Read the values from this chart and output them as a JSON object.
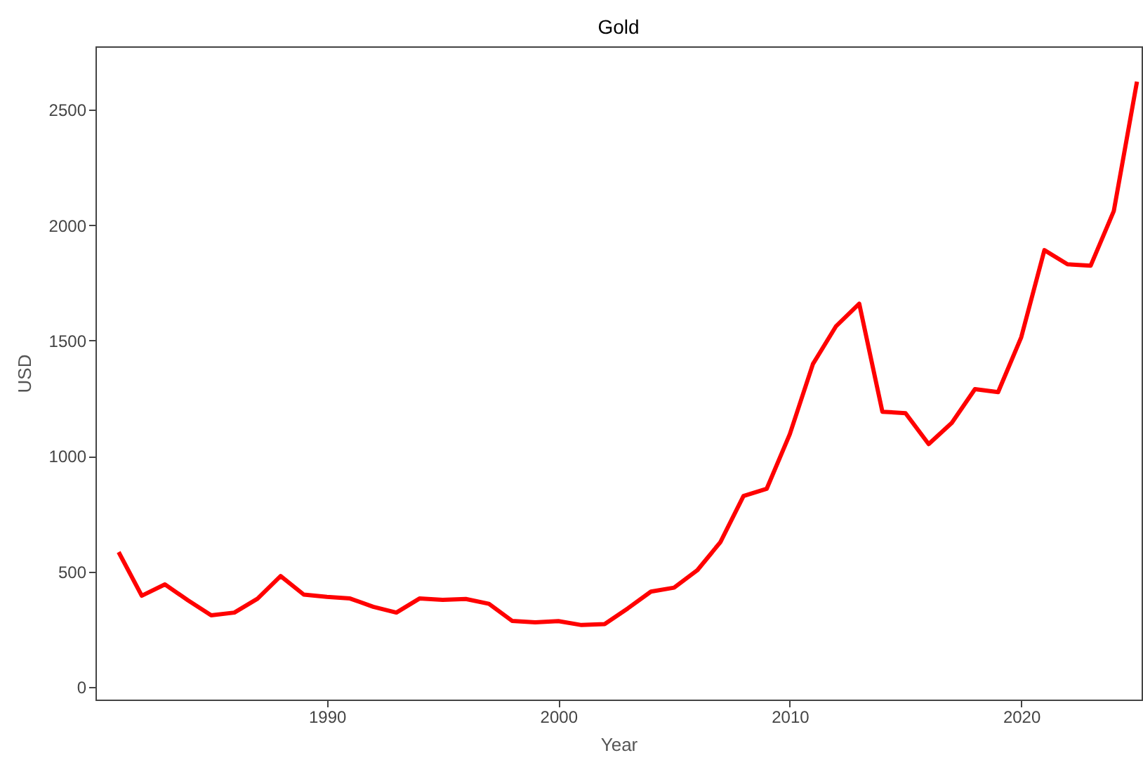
{
  "chart_data": {
    "type": "line",
    "title": "Gold",
    "xlabel": "Year",
    "ylabel": "USD",
    "x": [
      1981,
      1982,
      1983,
      1984,
      1985,
      1986,
      1987,
      1988,
      1989,
      1990,
      1991,
      1992,
      1993,
      1994,
      1995,
      1996,
      1997,
      1998,
      1999,
      2000,
      2001,
      2002,
      2003,
      2004,
      2005,
      2006,
      2007,
      2008,
      2009,
      2010,
      2011,
      2012,
      2013,
      2014,
      2015,
      2016,
      2017,
      2018,
      2019,
      2020,
      2021,
      2022,
      2023,
      2024,
      2025
    ],
    "series": [
      {
        "color": "#ff0000",
        "values": [
          584,
          395,
          444,
          375,
          310,
          322,
          382,
          480,
          400,
          390,
          383,
          347,
          322,
          383,
          377,
          381,
          360,
          286,
          280,
          285,
          268,
          272,
          340,
          413,
          430,
          505,
          627,
          827,
          858,
          1095,
          1399,
          1563,
          1660,
          1192,
          1186,
          1052,
          1144,
          1290,
          1277,
          1515,
          1892,
          1831,
          1825,
          2062,
          2622
        ]
      }
    ],
    "xlim": [
      1980,
      2025.2
    ],
    "xticks": [
      1990,
      2000,
      2010,
      2020
    ],
    "ylim": [
      -55,
      2775
    ],
    "yticks": [
      0,
      500,
      1000,
      1500,
      2000,
      2500
    ],
    "grid": false,
    "legend": false,
    "marker": "none",
    "line_style": "solid"
  }
}
